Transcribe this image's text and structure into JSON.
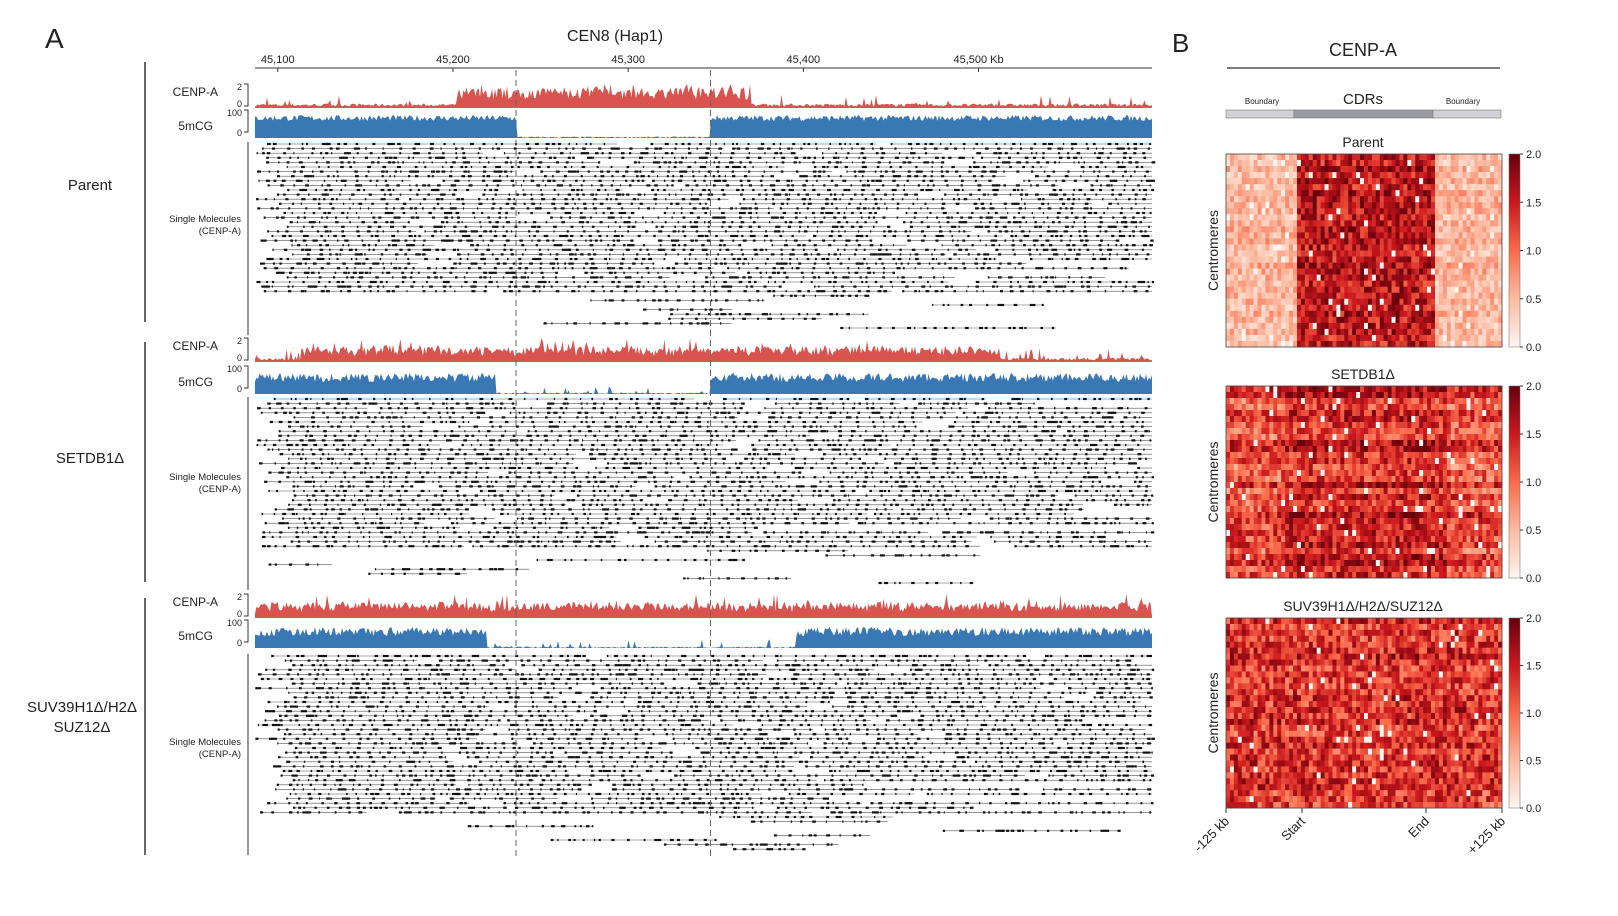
{
  "panel_a": {
    "letter": "A",
    "title": "CEN8 (Hap1)",
    "axis_ticks": [
      "45,100",
      "45,200",
      "45,300",
      "45,400",
      "45,500 Kb"
    ],
    "axis_tick_values_kb": [
      45100,
      45200,
      45300,
      45400,
      45500
    ],
    "axis_range_kb": [
      45087,
      45599
    ],
    "cdr_boundaries_kb": [
      45236,
      45347
    ],
    "track_labels": {
      "cenpa": "CENP-A",
      "mcg": "5mCG"
    },
    "cenpa_scale": {
      "max": "2",
      "min": "0"
    },
    "mcg_scale": {
      "max": "100",
      "min": "0"
    },
    "single_molecules_label": [
      "Single Molecules",
      "(CENP-A)"
    ],
    "conditions": [
      {
        "label": [
          "Parent"
        ]
      },
      {
        "label": [
          "SETDB1Δ"
        ]
      },
      {
        "label": [
          "SUV39H1Δ/H2Δ",
          "SUZ12Δ"
        ]
      }
    ],
    "colors": {
      "cenpa": "#d9534f",
      "mcg": "#3a78b5",
      "molecule": "#111111"
    }
  },
  "panel_b": {
    "letter": "B",
    "title": "CENP-A",
    "region_bar": {
      "left": "Boundary",
      "center": "CDRs",
      "right": "Boundary"
    },
    "y_label": "Centromeres",
    "x_ticks": [
      "-125 kb",
      "Start",
      "End",
      "+125 kb"
    ],
    "colorbar_ticks": [
      "2.0",
      "1.5",
      "1.0",
      "0.5",
      "0.0"
    ],
    "colors": {
      "low": "#ffffff",
      "high": "#7f0000"
    }
  },
  "chart_data": [
    {
      "type": "heatmap",
      "title": "Parent",
      "ylabel": "Centromeres",
      "xticks": [
        "-125 kb",
        "Start",
        "End",
        "+125 kb"
      ],
      "color_range": [
        0.0,
        2.0
      ],
      "pattern": "enrichment concentrated between Start and End"
    },
    {
      "type": "heatmap",
      "title": "SETDB1Δ",
      "ylabel": "Centromeres",
      "xticks": [
        "-125 kb",
        "Start",
        "End",
        "+125 kb"
      ],
      "color_range": [
        0.0,
        2.0
      ],
      "pattern": "enrichment spreads beyond CDR boundaries"
    },
    {
      "type": "heatmap",
      "title": "SUV39H1Δ/H2Δ/SUZ12Δ",
      "ylabel": "Centromeres",
      "xticks": [
        "-125 kb",
        "Start",
        "End",
        "+125 kb"
      ],
      "color_range": [
        0.0,
        2.0
      ],
      "pattern": "enrichment spread across whole window"
    }
  ]
}
